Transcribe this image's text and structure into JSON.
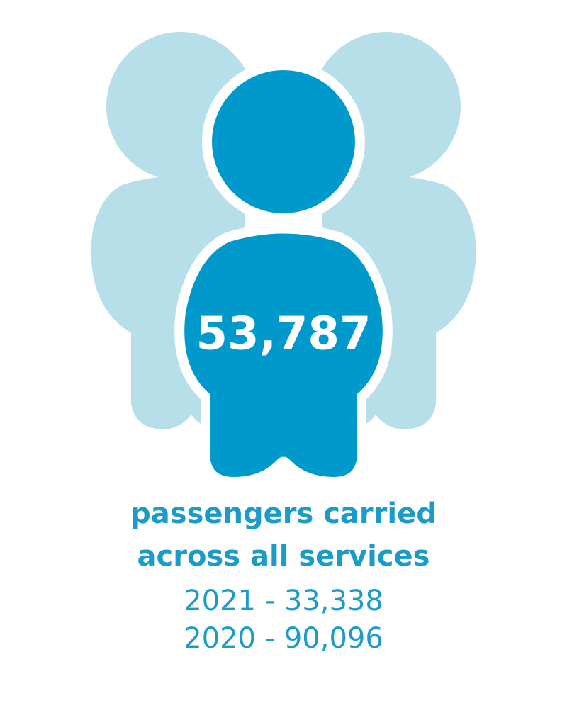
{
  "headline": {
    "value": "53,787"
  },
  "caption": {
    "lines": [
      "passengers carried",
      "across all services"
    ]
  },
  "comparisons": [
    "2021 - 33,338",
    "2020 - 90,096"
  ]
}
